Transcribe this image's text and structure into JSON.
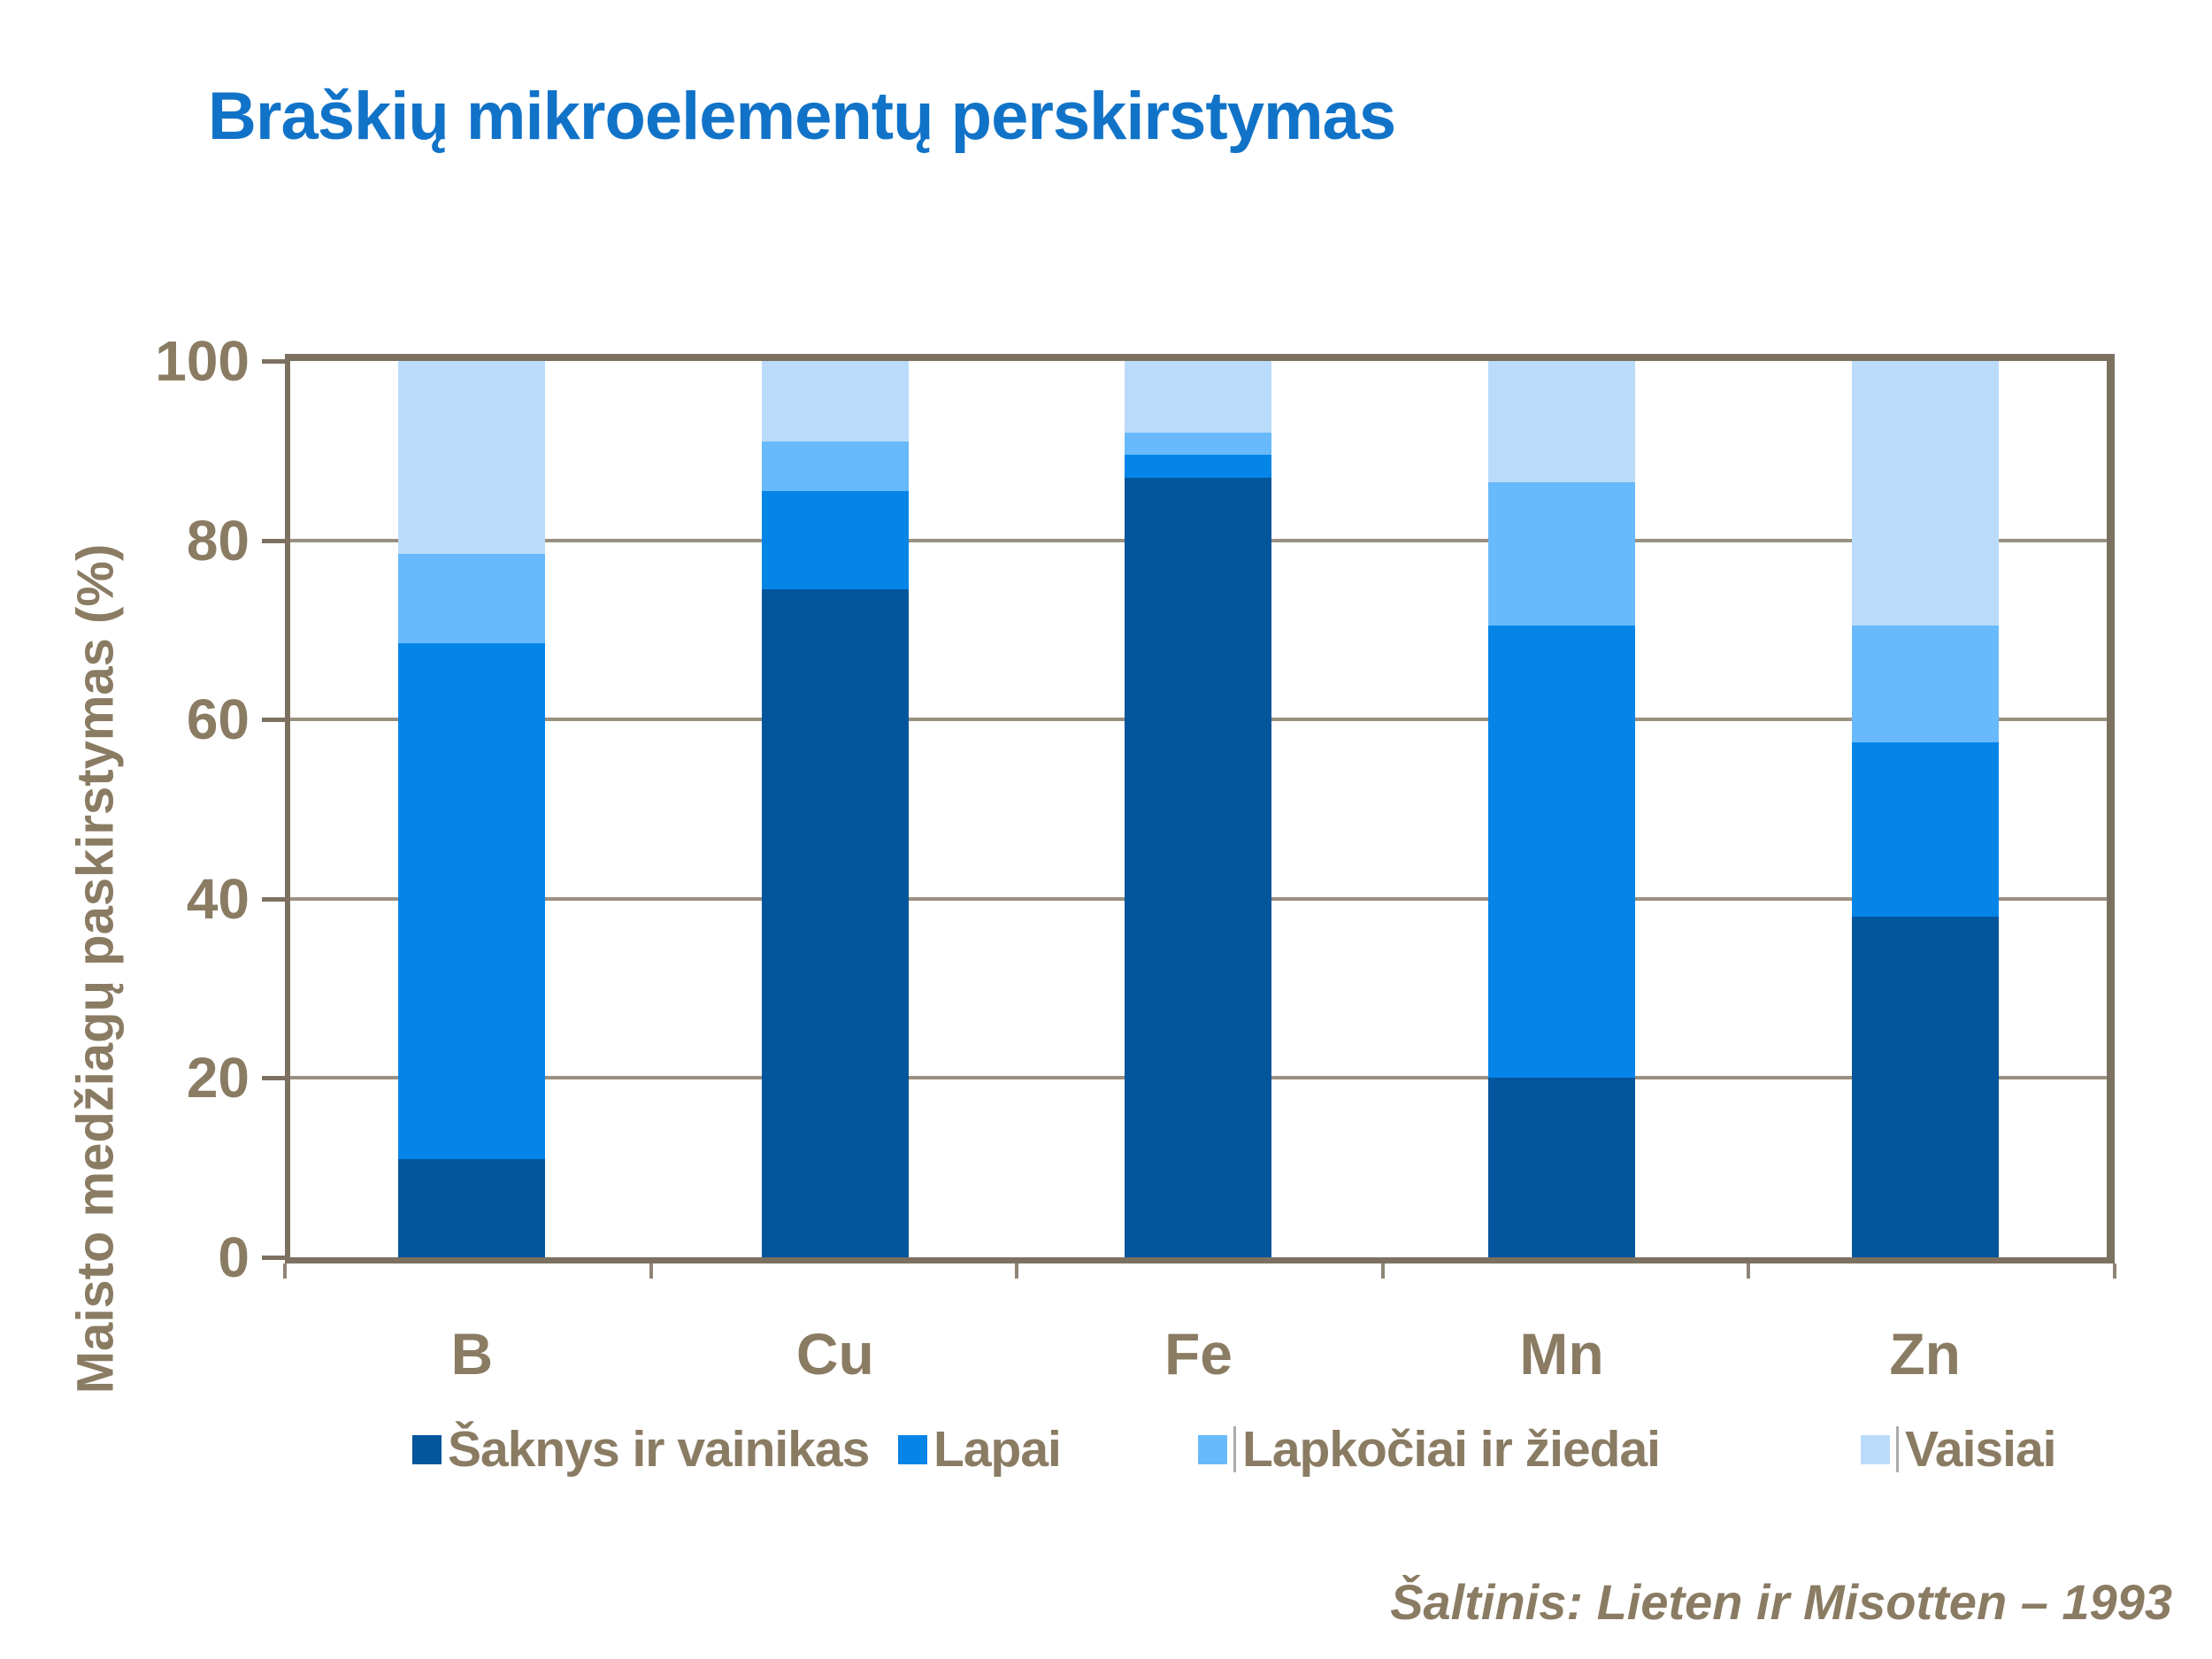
{
  "title": "Braškių mikroelementų perskirstymas",
  "source": "Šaltinis:  Lieten ir Misotten – 1993",
  "colors": {
    "title_blue": "#1173C8",
    "text_brown": "#8A7B63",
    "frame_brown": "#7C7161",
    "gridline": "#9A9080",
    "background": "#FFFFFF",
    "series_dark_blue": "#03559C",
    "series_bright_blue": "#0685E8",
    "series_sky_blue": "#68BAFC",
    "series_pale_blue": "#BADCFA"
  },
  "chart_data": {
    "type": "bar",
    "stacked": true,
    "title": "Braškių mikroelementų perskirstymas",
    "xlabel": "",
    "ylabel": "Maisto medžiagų paskirstymas (%)",
    "ylim": [
      0,
      100
    ],
    "yticks": [
      0,
      20,
      40,
      60,
      80,
      100
    ],
    "grid": true,
    "legend_position": "bottom",
    "categories": [
      "B",
      "Cu",
      "Fe",
      "Mn",
      "Zn"
    ],
    "series": [
      {
        "name": "Šaknys ir vainikas",
        "color": "#03559C",
        "values": [
          11,
          74.5,
          87,
          20,
          38
        ]
      },
      {
        "name": "Lapai",
        "color": "#0685E8",
        "values": [
          57.5,
          11,
          2.5,
          50.5,
          19.5
        ]
      },
      {
        "name": "Lapkočiai ir žiedai",
        "color": "#68BAFC",
        "values": [
          10,
          5.5,
          2.5,
          16,
          13
        ]
      },
      {
        "name": "Vaisiai",
        "color": "#BADCFA",
        "values": [
          21.5,
          9,
          8,
          13.5,
          29.5
        ]
      }
    ]
  },
  "legend": {
    "items": [
      {
        "label": "Šaknys ir vainikas",
        "color": "#03559C",
        "separator": false
      },
      {
        "label": "Lapai",
        "color": "#0685E8",
        "separator": false
      },
      {
        "label": "Lapkočiai ir žiedai",
        "color": "#68BAFC",
        "separator": true
      },
      {
        "label": "Vaisiai",
        "color": "#BADCFA",
        "separator": true
      }
    ]
  }
}
